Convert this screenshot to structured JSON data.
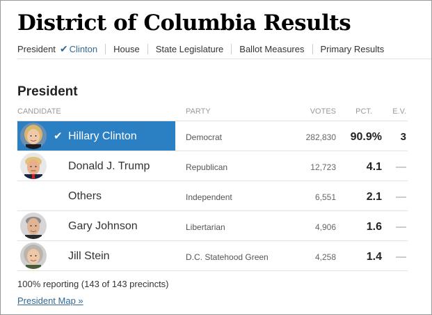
{
  "page": {
    "title": "District of Columbia Results"
  },
  "nav": {
    "items": [
      {
        "label": "President",
        "sub_label": "Clinton"
      },
      {
        "label": "House"
      },
      {
        "label": "State Legislature"
      },
      {
        "label": "Ballot Measures"
      },
      {
        "label": "Primary Results"
      }
    ],
    "check_icon": "check-icon",
    "accent_color": "#326891"
  },
  "section": {
    "title": "President"
  },
  "table": {
    "headers": {
      "candidate": "Candidate",
      "party": "Party",
      "votes": "Votes",
      "pct": "Pct.",
      "ev": "E.V."
    },
    "winner_color": "#2b7fc3",
    "rows": [
      {
        "name": "Hillary Clinton",
        "party": "Democrat",
        "votes": "282,830",
        "pct": "90.9%",
        "ev": "3",
        "winner": true,
        "photo": "clinton-photo"
      },
      {
        "name": "Donald J. Trump",
        "party": "Republican",
        "votes": "12,723",
        "pct": "4.1",
        "ev": "—",
        "winner": false,
        "photo": "trump-photo"
      },
      {
        "name": "Others",
        "party": "Independent",
        "votes": "6,551",
        "pct": "2.1",
        "ev": "—",
        "winner": false,
        "photo": null
      },
      {
        "name": "Gary Johnson",
        "party": "Libertarian",
        "votes": "4,906",
        "pct": "1.6",
        "ev": "—",
        "winner": false,
        "photo": "johnson-photo"
      },
      {
        "name": "Jill Stein",
        "party": "D.C. Statehood Green",
        "votes": "4,258",
        "pct": "1.4",
        "ev": "—",
        "winner": false,
        "photo": "stein-photo"
      }
    ]
  },
  "footer": {
    "reporting": "100% reporting (143 of 143 precincts)",
    "map_link": "President Map »"
  }
}
